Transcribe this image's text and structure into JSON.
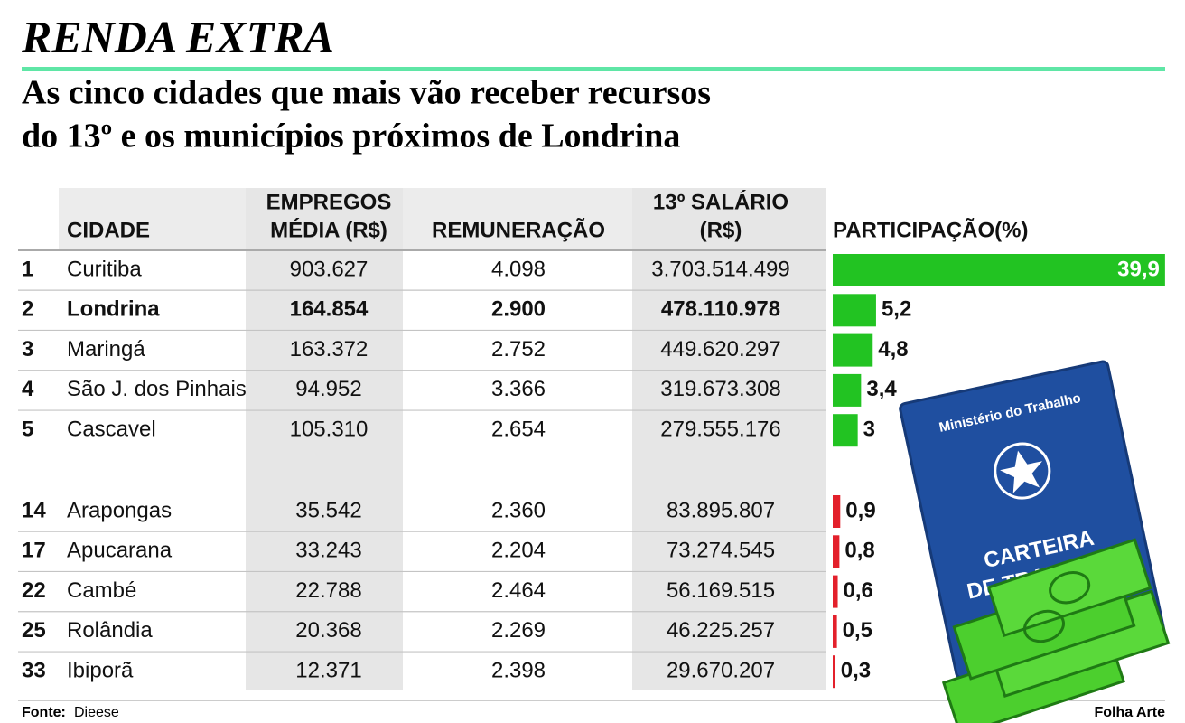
{
  "header": {
    "title": "RENDA EXTRA",
    "subtitle": [
      "As cinco cidades que mais vão receber recursos",
      "do 13º e os municípios próximos de Londrina"
    ]
  },
  "table": {
    "columns": [
      [
        "CIDADE"
      ],
      [
        "EMPREGOS",
        "MÉDIA (R$)"
      ],
      [
        "REMUNERAÇÃO"
      ],
      [
        "13º SALÁRIO",
        "(R$)"
      ],
      [
        "PARTICIPAÇÃO(%)"
      ]
    ],
    "groups": [
      {
        "color": "#22c322",
        "rows": [
          {
            "rank": "1",
            "city": "Curitiba",
            "jobs": "903.627",
            "pay": "4.098",
            "salary": "3.703.514.499",
            "share": 39.9,
            "share_label": "39,9"
          },
          {
            "rank": "2",
            "city": "Londrina",
            "jobs": "164.854",
            "pay": "2.900",
            "salary": "478.110.978",
            "share": 5.2,
            "share_label": "5,2",
            "bold": true
          },
          {
            "rank": "3",
            "city": "Maringá",
            "jobs": "163.372",
            "pay": "2.752",
            "salary": "449.620.297",
            "share": 4.8,
            "share_label": "4,8"
          },
          {
            "rank": "4",
            "city": "São J. dos Pinhais",
            "jobs": "94.952",
            "pay": "3.366",
            "salary": "319.673.308",
            "share": 3.4,
            "share_label": "3,4"
          },
          {
            "rank": "5",
            "city": "Cascavel",
            "jobs": "105.310",
            "pay": "2.654",
            "salary": "279.555.176",
            "share": 3,
            "share_label": "3"
          }
        ]
      },
      {
        "color": "#e3202b",
        "rows": [
          {
            "rank": "14",
            "city": "Arapongas",
            "jobs": "35.542",
            "pay": "2.360",
            "salary": "83.895.807",
            "share": 0.9,
            "share_label": "0,9"
          },
          {
            "rank": "17",
            "city": "Apucarana",
            "jobs": "33.243",
            "pay": "2.204",
            "salary": "73.274.545",
            "share": 0.8,
            "share_label": "0,8"
          },
          {
            "rank": "22",
            "city": "Cambé",
            "jobs": "22.788",
            "pay": "2.464",
            "salary": "56.169.515",
            "share": 0.6,
            "share_label": "0,6"
          },
          {
            "rank": "25",
            "city": "Rolândia",
            "jobs": "20.368",
            "pay": "2.269",
            "salary": "46.225.257",
            "share": 0.5,
            "share_label": "0,5"
          },
          {
            "rank": "33",
            "city": "Ibiporã",
            "jobs": "12.371",
            "pay": "2.398",
            "salary": "29.670.207",
            "share": 0.3,
            "share_label": "0,3"
          }
        ]
      }
    ]
  },
  "illustration": {
    "ministry": "Ministério do Trabalho",
    "card": [
      "CARTEIRA",
      "DE TRABALHO"
    ]
  },
  "footer": {
    "source_label": "Fonte:",
    "source": "Dieese",
    "credit": "Folha Arte"
  }
}
